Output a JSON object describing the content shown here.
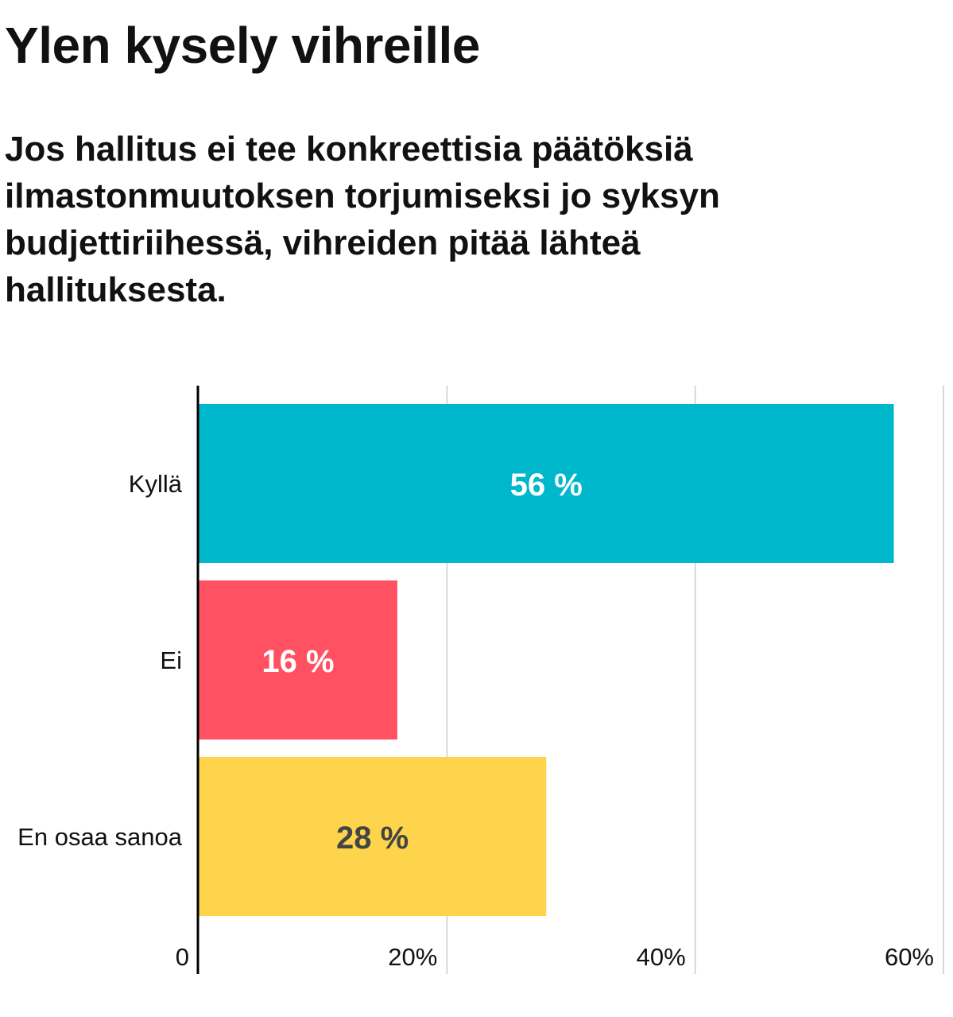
{
  "chart_data": {
    "type": "bar",
    "orientation": "horizontal",
    "title": "Ylen kysely vihreille",
    "subtitle": "Jos hallitus ei tee konkreettisia päätöksiä ilmastonmuutoksen torjumiseksi jo syksyn budjettiriihessä, vihreiden pitää lähteä hallituksesta.",
    "categories": [
      "Kyllä",
      "Ei",
      "En osaa sanoa"
    ],
    "values": [
      56,
      16,
      28
    ],
    "data_labels": [
      "56 %",
      "16 %",
      "28 %"
    ],
    "colors": [
      "#00b8cc",
      "#ff5161",
      "#fdd44b"
    ],
    "label_colors": [
      "#ffffff",
      "#ffffff",
      "#444444"
    ],
    "xlim": [
      0,
      60
    ],
    "ticks": [
      0,
      20,
      40,
      60
    ],
    "tick_labels": [
      "0",
      "20%",
      "40%",
      "60%"
    ],
    "grid": true,
    "legend": "none"
  }
}
